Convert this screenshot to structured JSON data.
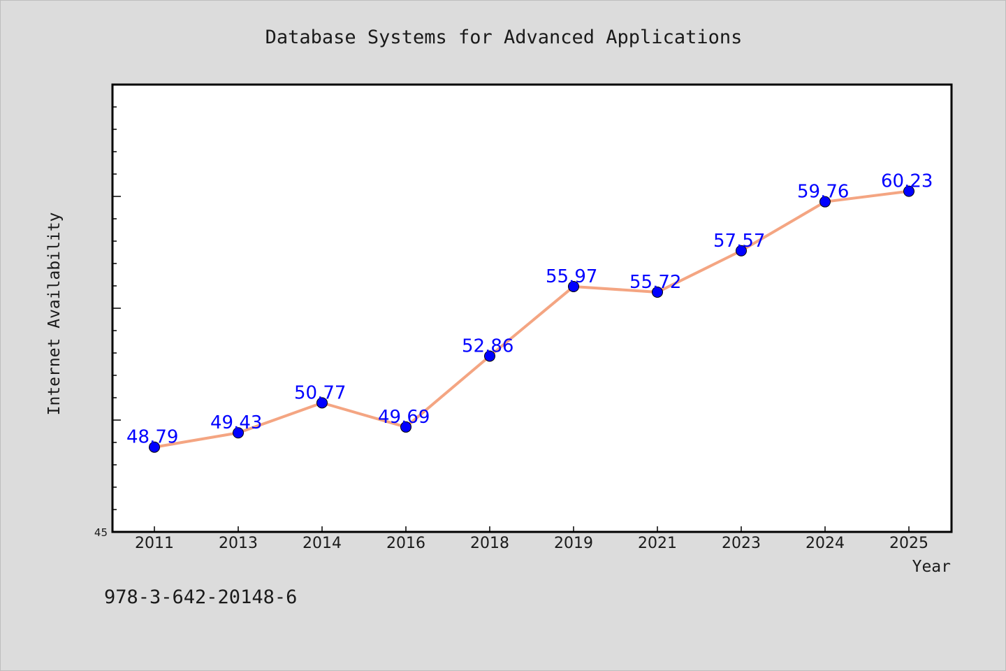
{
  "chart_data": {
    "type": "line",
    "title": "Database Systems for Advanced Applications",
    "xlabel": "Year",
    "ylabel": "Internet Availability",
    "categories": [
      "2011",
      "2013",
      "2014",
      "2016",
      "2018",
      "2019",
      "2021",
      "2023",
      "2024",
      "2025"
    ],
    "series": [
      {
        "values": [
          48.79,
          49.43,
          50.77,
          49.69,
          52.86,
          55.97,
          55.72,
          57.57,
          59.76,
          60.23
        ],
        "data_labels": [
          "48.79",
          "49.43",
          "50.77",
          "49.69",
          "52.86",
          "55.97",
          "55.72",
          "57.57",
          "59.76",
          "60.23"
        ]
      }
    ],
    "ylim": [
      45,
      65
    ],
    "ytick_labels": [
      "45"
    ],
    "grid": false,
    "legend": "none",
    "colors": {
      "line": "#f4a582",
      "marker": "#0000ff",
      "label": "#0000ff",
      "plot_background": "#ffffff",
      "figure_background": "#dcdcdc"
    }
  },
  "footer": {
    "isbn": "978-3-642-20148-6"
  }
}
